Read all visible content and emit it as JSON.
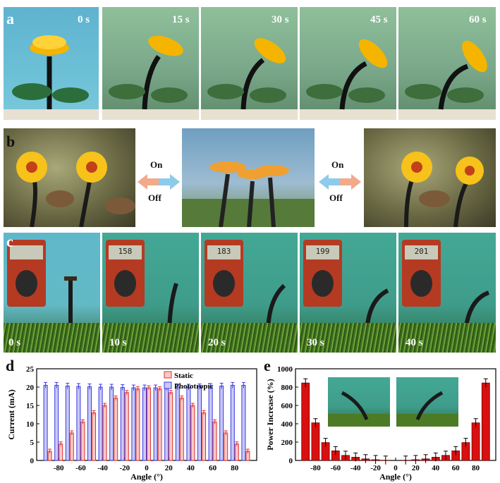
{
  "figure": {
    "panel_a": {
      "letter": "a",
      "time_labels": [
        "0 s",
        "15 s",
        "30 s",
        "45 s",
        "60 s"
      ]
    },
    "panel_b": {
      "letter": "b",
      "left_switch": {
        "on": "On",
        "off": "Off"
      },
      "right_switch": {
        "on": "On",
        "off": "Off"
      }
    },
    "panel_c": {
      "letter": "c",
      "time_labels": [
        "0 s",
        "10 s",
        "20 s",
        "30 s",
        "40 s"
      ],
      "meter_readings": [
        "",
        "158",
        "183",
        "199",
        "201"
      ]
    },
    "panel_d": {
      "letter": "d"
    },
    "panel_e": {
      "letter": "e"
    },
    "colors": {
      "static": "#e03030",
      "phototropic": "#3a3ae0",
      "power_bar": "#d81010",
      "arrow_left": "#f4a58a",
      "arrow_right": "#7cc6ee"
    }
  },
  "chart_data": [
    {
      "type": "bar",
      "panel": "d",
      "xlabel": "Angle (°)",
      "ylabel": "Current (mA)",
      "ylim": [
        0,
        25
      ],
      "xticks": [
        -80,
        -60,
        -40,
        -20,
        0,
        20,
        40,
        60,
        80
      ],
      "yticks": [
        0,
        5,
        10,
        15,
        20,
        25
      ],
      "legend_position": "top-right",
      "x": [
        -90,
        -80,
        -70,
        -60,
        -50,
        -40,
        -30,
        -20,
        -10,
        0,
        10,
        20,
        30,
        40,
        50,
        60,
        70,
        80,
        90
      ],
      "series": [
        {
          "name": "Static",
          "values": [
            2.5,
            4.5,
            7.5,
            10.5,
            13.0,
            15.0,
            17.0,
            18.5,
            19.5,
            19.8,
            19.5,
            18.5,
            17.0,
            15.0,
            13.0,
            10.5,
            7.5,
            4.5,
            2.5
          ]
        },
        {
          "name": "Phototropic",
          "values": [
            20.5,
            20.5,
            20.3,
            20.2,
            20.1,
            20.0,
            20.0,
            19.9,
            19.8,
            19.8,
            19.8,
            19.9,
            20.0,
            20.0,
            20.1,
            20.2,
            20.3,
            20.5,
            20.5
          ]
        }
      ]
    },
    {
      "type": "bar",
      "panel": "e",
      "xlabel": "Angle (°)",
      "ylabel": "Power Increase (%)",
      "ylim": [
        0,
        1000
      ],
      "xticks": [
        -80,
        -60,
        -40,
        -20,
        0,
        20,
        40,
        60,
        80
      ],
      "yticks": [
        0,
        200,
        400,
        600,
        800,
        1000
      ],
      "x": [
        -90,
        -80,
        -70,
        -60,
        -50,
        -40,
        -30,
        -20,
        -10,
        0,
        10,
        20,
        30,
        40,
        50,
        60,
        70,
        80,
        90
      ],
      "values": [
        845,
        410,
        195,
        105,
        55,
        35,
        17,
        8,
        2,
        0,
        2,
        8,
        17,
        35,
        55,
        105,
        195,
        410,
        845
      ]
    }
  ]
}
